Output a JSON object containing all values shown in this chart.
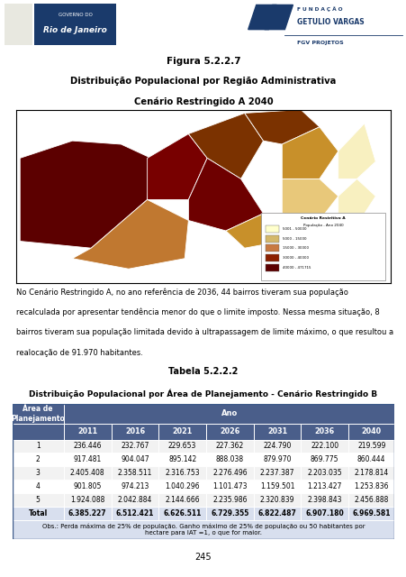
{
  "page_bg": "#ffffff",
  "fig_title": "Figura 5.2.2.7",
  "fig_subtitle1": "Distribuição Populacional por Região Administrativa",
  "fig_subtitle2": "Cenário Restringido A 2040",
  "paragraph": "No Cenário Restringido A, no ano referência de 2036, 44 bairros tiveram sua população recalculada por apresentar tendência menor do que o limite imposto. Nessa mesma situação, 8 bairros tiveram sua população limitada devido à ultrapassagem de limite máximo, o que resultou a realocação de 91.970 habitantes.",
  "table_title": "Tabela 5.2.2.2",
  "table_subtitle": "Distribuição Populacional por Área de Planejamento - Cenário Restringido B",
  "table_header_bg": "#4a5e8a",
  "table_header_color": "#ffffff",
  "ano_header": "Ano",
  "years": [
    "2011",
    "2016",
    "2021",
    "2026",
    "2031",
    "2036",
    "2040"
  ],
  "rows": [
    [
      "1",
      "236.446",
      "232.767",
      "229.653",
      "227.362",
      "224.790",
      "222.100",
      "219.599"
    ],
    [
      "2",
      "917.481",
      "904.047",
      "895.142",
      "888.038",
      "879.970",
      "869.775",
      "860.444"
    ],
    [
      "3",
      "2.405.408",
      "2.358.511",
      "2.316.753",
      "2.276.496",
      "2.237.387",
      "2.203.035",
      "2.178.814"
    ],
    [
      "4",
      "901.805",
      "974.213",
      "1.040.296",
      "1.101.473",
      "1.159.501",
      "1.213.427",
      "1.253.836"
    ],
    [
      "5",
      "1.924.088",
      "2.042.884",
      "2.144.666",
      "2.235.986",
      "2.320.839",
      "2.398.843",
      "2.456.888"
    ],
    [
      "Total",
      "6.385.227",
      "6.512.421",
      "6.626.511",
      "6.729.355",
      "6.822.487",
      "6.907.180",
      "6.969.581"
    ]
  ],
  "table_note": "Obs.: Perda máxima de 25% de população. Ganho máximo de 25% de população ou 50 habitantes por\nhectare para IAT =1, o que for maior.",
  "page_number": "245",
  "map_colors": [
    "#5c0000",
    "#6b0a0a",
    "#8b4513",
    "#7a0000",
    "#cd853f",
    "#8b4513",
    "#daa520",
    "#f5deb3",
    "#daa520",
    "#fffacd",
    "#fffacd"
  ],
  "legend_colors": [
    "#ffffcc",
    "#d4b86a",
    "#c87941",
    "#8b2000",
    "#5c0000"
  ],
  "legend_labels": [
    "5001 - 50000",
    "5000 - 15000",
    "15000 - 30000",
    "30000 - 40000",
    "40000 - 471715"
  ]
}
